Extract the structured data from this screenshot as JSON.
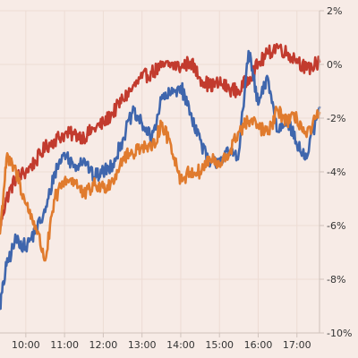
{
  "colors": {
    "background": "#f7ebe6",
    "grid": "#eddcd4",
    "axis": "#cfc2bb",
    "text": "#333333"
  },
  "chart_data": {
    "type": "line",
    "title": "",
    "xlabel": "",
    "ylabel": "",
    "grid": true,
    "legend": "none",
    "y_axis_position": "right",
    "xlim": [
      "09:20",
      "17:35"
    ],
    "ylim": [
      -10,
      2
    ],
    "x_ticks": [
      "10:00",
      "11:00",
      "12:00",
      "13:00",
      "14:00",
      "15:00",
      "16:00",
      "17:00"
    ],
    "y_ticks": [
      {
        "value": 2,
        "label": "2%"
      },
      {
        "value": 0,
        "label": "0%"
      },
      {
        "value": -2,
        "label": "-2%"
      },
      {
        "value": -4,
        "label": "-4%"
      },
      {
        "value": -6,
        "label": "-6%"
      },
      {
        "value": -8,
        "label": "-8%"
      },
      {
        "value": -10,
        "label": "-10%"
      }
    ],
    "series": [
      {
        "color": "#c23b2e",
        "x": [
          "09:20",
          "09:30",
          "09:45",
          "10:00",
          "10:15",
          "10:30",
          "10:45",
          "11:00",
          "11:15",
          "11:30",
          "11:45",
          "12:00",
          "12:15",
          "12:30",
          "12:45",
          "13:00",
          "13:15",
          "13:30",
          "13:45",
          "14:00",
          "14:15",
          "14:30",
          "14:45",
          "15:00",
          "15:15",
          "15:30",
          "15:45",
          "16:00",
          "16:15",
          "16:30",
          "16:45",
          "17:00",
          "17:15",
          "17:35"
        ],
        "values": [
          -6.0,
          -5.0,
          -4.2,
          -4.0,
          -3.6,
          -3.1,
          -2.8,
          -2.6,
          -2.6,
          -2.7,
          -2.4,
          -2.2,
          -1.8,
          -1.3,
          -0.9,
          -0.5,
          -0.3,
          -0.1,
          0.0,
          -0.1,
          0.1,
          -0.5,
          -0.8,
          -0.7,
          -0.9,
          -1.0,
          -0.5,
          0.0,
          0.4,
          0.7,
          0.4,
          0.2,
          -0.2,
          0.1
        ]
      },
      {
        "color": "#3f66ad",
        "x": [
          "09:20",
          "09:30",
          "09:45",
          "10:00",
          "10:15",
          "10:30",
          "10:45",
          "11:00",
          "11:15",
          "11:30",
          "11:45",
          "12:00",
          "12:15",
          "12:30",
          "12:45",
          "13:00",
          "13:15",
          "13:30",
          "13:45",
          "14:00",
          "14:15",
          "14:30",
          "14:45",
          "15:00",
          "15:15",
          "15:30",
          "15:45",
          "16:00",
          "16:15",
          "16:30",
          "16:45",
          "17:00",
          "17:15",
          "17:35"
        ],
        "values": [
          -9.0,
          -7.5,
          -6.5,
          -6.8,
          -6.2,
          -5.5,
          -4.0,
          -3.3,
          -3.8,
          -3.5,
          -4.2,
          -4.0,
          -3.7,
          -2.8,
          -1.8,
          -2.2,
          -2.8,
          -1.3,
          -1.1,
          -0.8,
          -1.8,
          -2.8,
          -3.8,
          -3.5,
          -3.3,
          -3.3,
          0.5,
          -1.5,
          -0.5,
          -2.5,
          -2.0,
          -3.0,
          -3.5,
          -1.6
        ]
      },
      {
        "color": "#e07b2e",
        "x": [
          "09:20",
          "09:30",
          "09:45",
          "10:00",
          "10:15",
          "10:30",
          "10:45",
          "11:00",
          "11:15",
          "11:30",
          "11:45",
          "12:00",
          "12:15",
          "12:30",
          "12:45",
          "13:00",
          "13:15",
          "13:30",
          "13:45",
          "14:00",
          "14:15",
          "14:30",
          "14:45",
          "15:00",
          "15:15",
          "15:30",
          "15:45",
          "16:00",
          "16:15",
          "16:30",
          "16:45",
          "17:00",
          "17:15",
          "17:35"
        ],
        "values": [
          -6.3,
          -3.5,
          -4.0,
          -5.2,
          -6.0,
          -7.3,
          -5.0,
          -4.3,
          -4.3,
          -4.9,
          -4.5,
          -4.6,
          -4.3,
          -3.5,
          -3.3,
          -3.0,
          -3.2,
          -2.2,
          -3.0,
          -4.3,
          -4.0,
          -4.0,
          -3.5,
          -3.8,
          -3.3,
          -2.5,
          -2.1,
          -2.3,
          -2.6,
          -1.7,
          -2.1,
          -2.0,
          -2.7,
          -1.8
        ]
      }
    ]
  }
}
